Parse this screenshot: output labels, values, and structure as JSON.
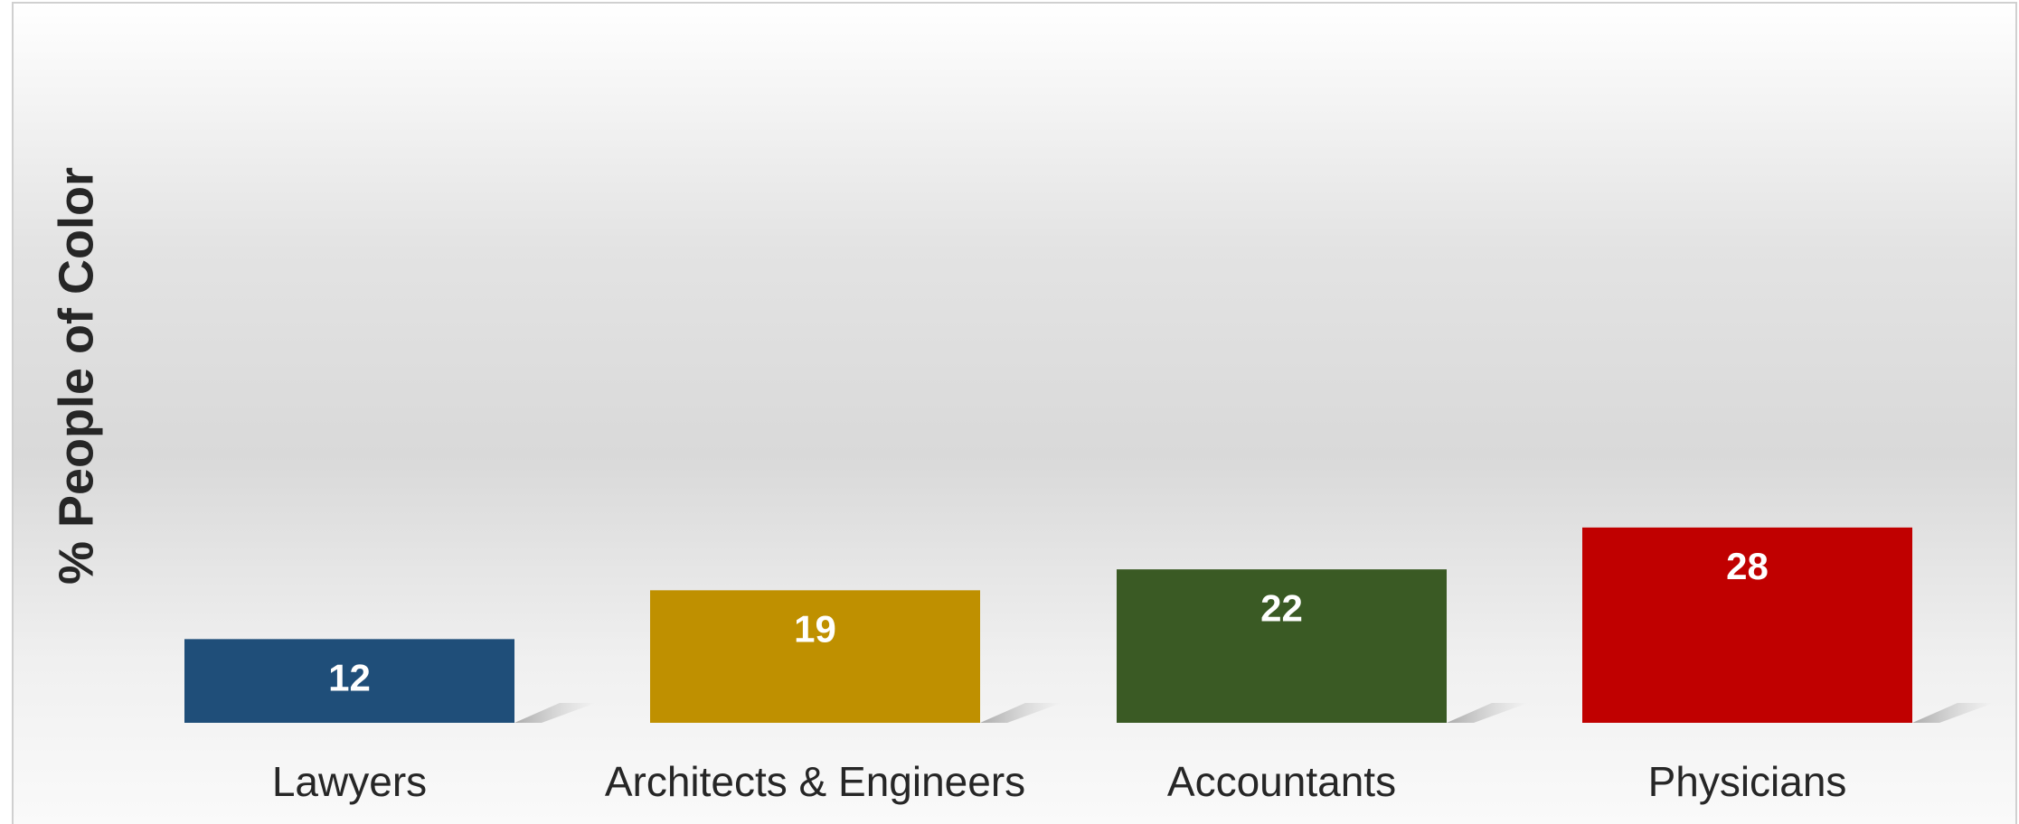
{
  "chart_data": {
    "type": "bar",
    "y_label": "% People of Color",
    "categories": [
      "Lawyers",
      "Architects & Engineers",
      "Accountants",
      "Physicians"
    ],
    "values": [
      12,
      19,
      22,
      28
    ],
    "colors": [
      "#1f4e79",
      "#bf9000",
      "#3a5a24",
      "#c00000"
    ],
    "grid": false
  }
}
